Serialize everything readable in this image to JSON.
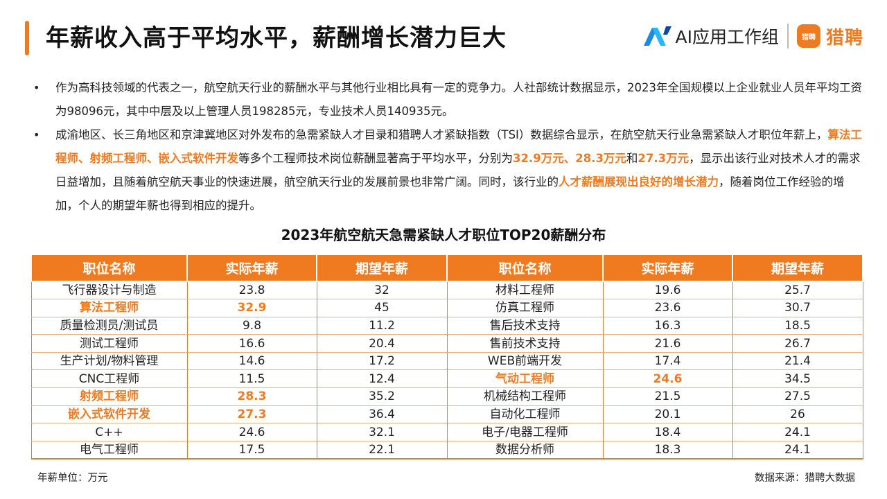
{
  "header": {
    "title": "年薪收入高于平均水平，薪酬增长潜力巨大",
    "brand_ai_text": "AI应用工作组",
    "brand_liepin_badge": "猎聘",
    "brand_liepin_text": "猎聘",
    "accent_color": "#F07A20"
  },
  "bullets": [
    {
      "segments": [
        {
          "text": "作为高科技领域的代表之一，航空航天行业的薪酬水平与其他行业相比具有一定的竞争力。人社部统计数据显示，2023年全国规模以上企业就业人员年平均工资为98096元，其中中层及以上管理人员198285元，专业技术人员140935元。",
          "hl": false
        }
      ]
    },
    {
      "segments": [
        {
          "text": "成渝地区、长三角地区和京津冀地区对外发布的急需紧缺人才目录和猎聘人才紧缺指数（TSI）数据综合显示，在航空航天行业急需紧缺人才职位年薪上，",
          "hl": false
        },
        {
          "text": "算法工程师、射频工程师、嵌入式软件开发",
          "hl": true
        },
        {
          "text": "等多个工程师技术岗位薪酬显著高于平均水平，分别为",
          "hl": false
        },
        {
          "text": "32.9万元、28.3万元",
          "hl": true
        },
        {
          "text": "和",
          "hl": false
        },
        {
          "text": "27.3万元",
          "hl": true
        },
        {
          "text": "，显示出该行业对技术人才的需求日益增加，且随着航空航天事业的快速进展，航空航天行业的发展前景也非常广阔。同时，该行业的",
          "hl": false
        },
        {
          "text": "人才薪酬展现出良好的增长潜力",
          "hl": true
        },
        {
          "text": "，随着岗位工作经验的增加，个人的期望年薪也得到相应的提升。",
          "hl": false
        }
      ]
    }
  ],
  "table": {
    "title": "2023年航空航天急需紧缺人才职位TOP20薪酬分布",
    "headers": [
      "职位名称",
      "实际年薪",
      "期望年薪",
      "职位名称",
      "实际年薪",
      "期望年薪"
    ],
    "rows": [
      {
        "left": {
          "name": "飞行器设计与制造",
          "actual": "23.8",
          "expected": "32",
          "hl": false
        },
        "right": {
          "name": "材料工程师",
          "actual": "19.6",
          "expected": "25.7",
          "hl": false
        }
      },
      {
        "left": {
          "name": "算法工程师",
          "actual": "32.9",
          "expected": "45",
          "hl": true
        },
        "right": {
          "name": "仿真工程师",
          "actual": "23.6",
          "expected": "30.7",
          "hl": false
        }
      },
      {
        "left": {
          "name": "质量检测员/测试员",
          "actual": "9.8",
          "expected": "11.2",
          "hl": false
        },
        "right": {
          "name": "售后技术支持",
          "actual": "16.3",
          "expected": "18.5",
          "hl": false
        }
      },
      {
        "left": {
          "name": "测试工程师",
          "actual": "16.6",
          "expected": "20.4",
          "hl": false
        },
        "right": {
          "name": "售前技术支持",
          "actual": "21.6",
          "expected": "26.7",
          "hl": false
        }
      },
      {
        "left": {
          "name": "生产计划/物料管理",
          "actual": "14.6",
          "expected": "17.2",
          "hl": false
        },
        "right": {
          "name": "WEB前端开发",
          "actual": "17.4",
          "expected": "21.4",
          "hl": false
        }
      },
      {
        "left": {
          "name": "CNC工程师",
          "actual": "11.5",
          "expected": "12.4",
          "hl": false
        },
        "right": {
          "name": "气动工程师",
          "actual": "24.6",
          "expected": "34.5",
          "hl": true
        }
      },
      {
        "left": {
          "name": "射频工程师",
          "actual": "28.3",
          "expected": "35.2",
          "hl": true
        },
        "right": {
          "name": "机械结构工程师",
          "actual": "21.5",
          "expected": "27.5",
          "hl": false
        }
      },
      {
        "left": {
          "name": "嵌入式软件开发",
          "actual": "27.3",
          "expected": "36.4",
          "hl": true
        },
        "right": {
          "name": "自动化工程师",
          "actual": "20.1",
          "expected": "26",
          "hl": false
        }
      },
      {
        "left": {
          "name": "C++",
          "actual": "24.6",
          "expected": "32.1",
          "hl": false
        },
        "right": {
          "name": "电子/电器工程师",
          "actual": "18.4",
          "expected": "24.1",
          "hl": false
        }
      },
      {
        "left": {
          "name": "电气工程师",
          "actual": "17.5",
          "expected": "22.1",
          "hl": false
        },
        "right": {
          "name": "数据分析师",
          "actual": "18.3",
          "expected": "24.1",
          "hl": false
        }
      }
    ]
  },
  "footer": {
    "unit_note": "年薪单位：万元",
    "source_note": "数据来源：猎聘大数据"
  }
}
